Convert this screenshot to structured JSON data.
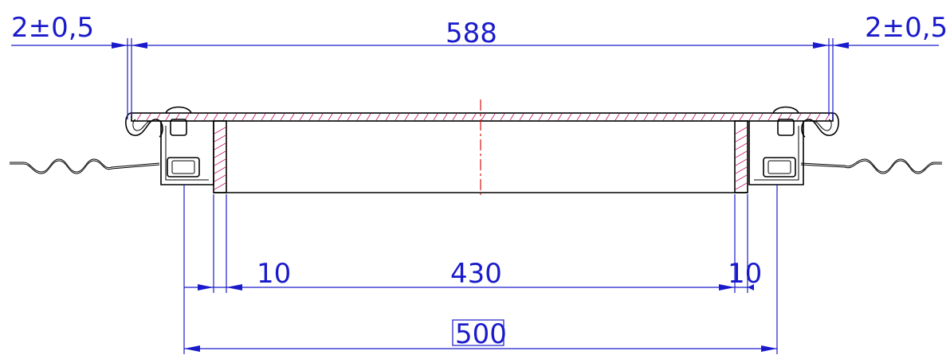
{
  "dimensions": {
    "tolerance_left": "2±0,5",
    "overall_width": "588",
    "tolerance_right": "2±0,5",
    "wall_left": "10",
    "inner_width": "430",
    "wall_right": "10",
    "base_width": "500"
  },
  "colors": {
    "dimension": "#1a1acc",
    "object": "#000000",
    "hatch": "#cc2277",
    "centerline": "#dd1111"
  }
}
